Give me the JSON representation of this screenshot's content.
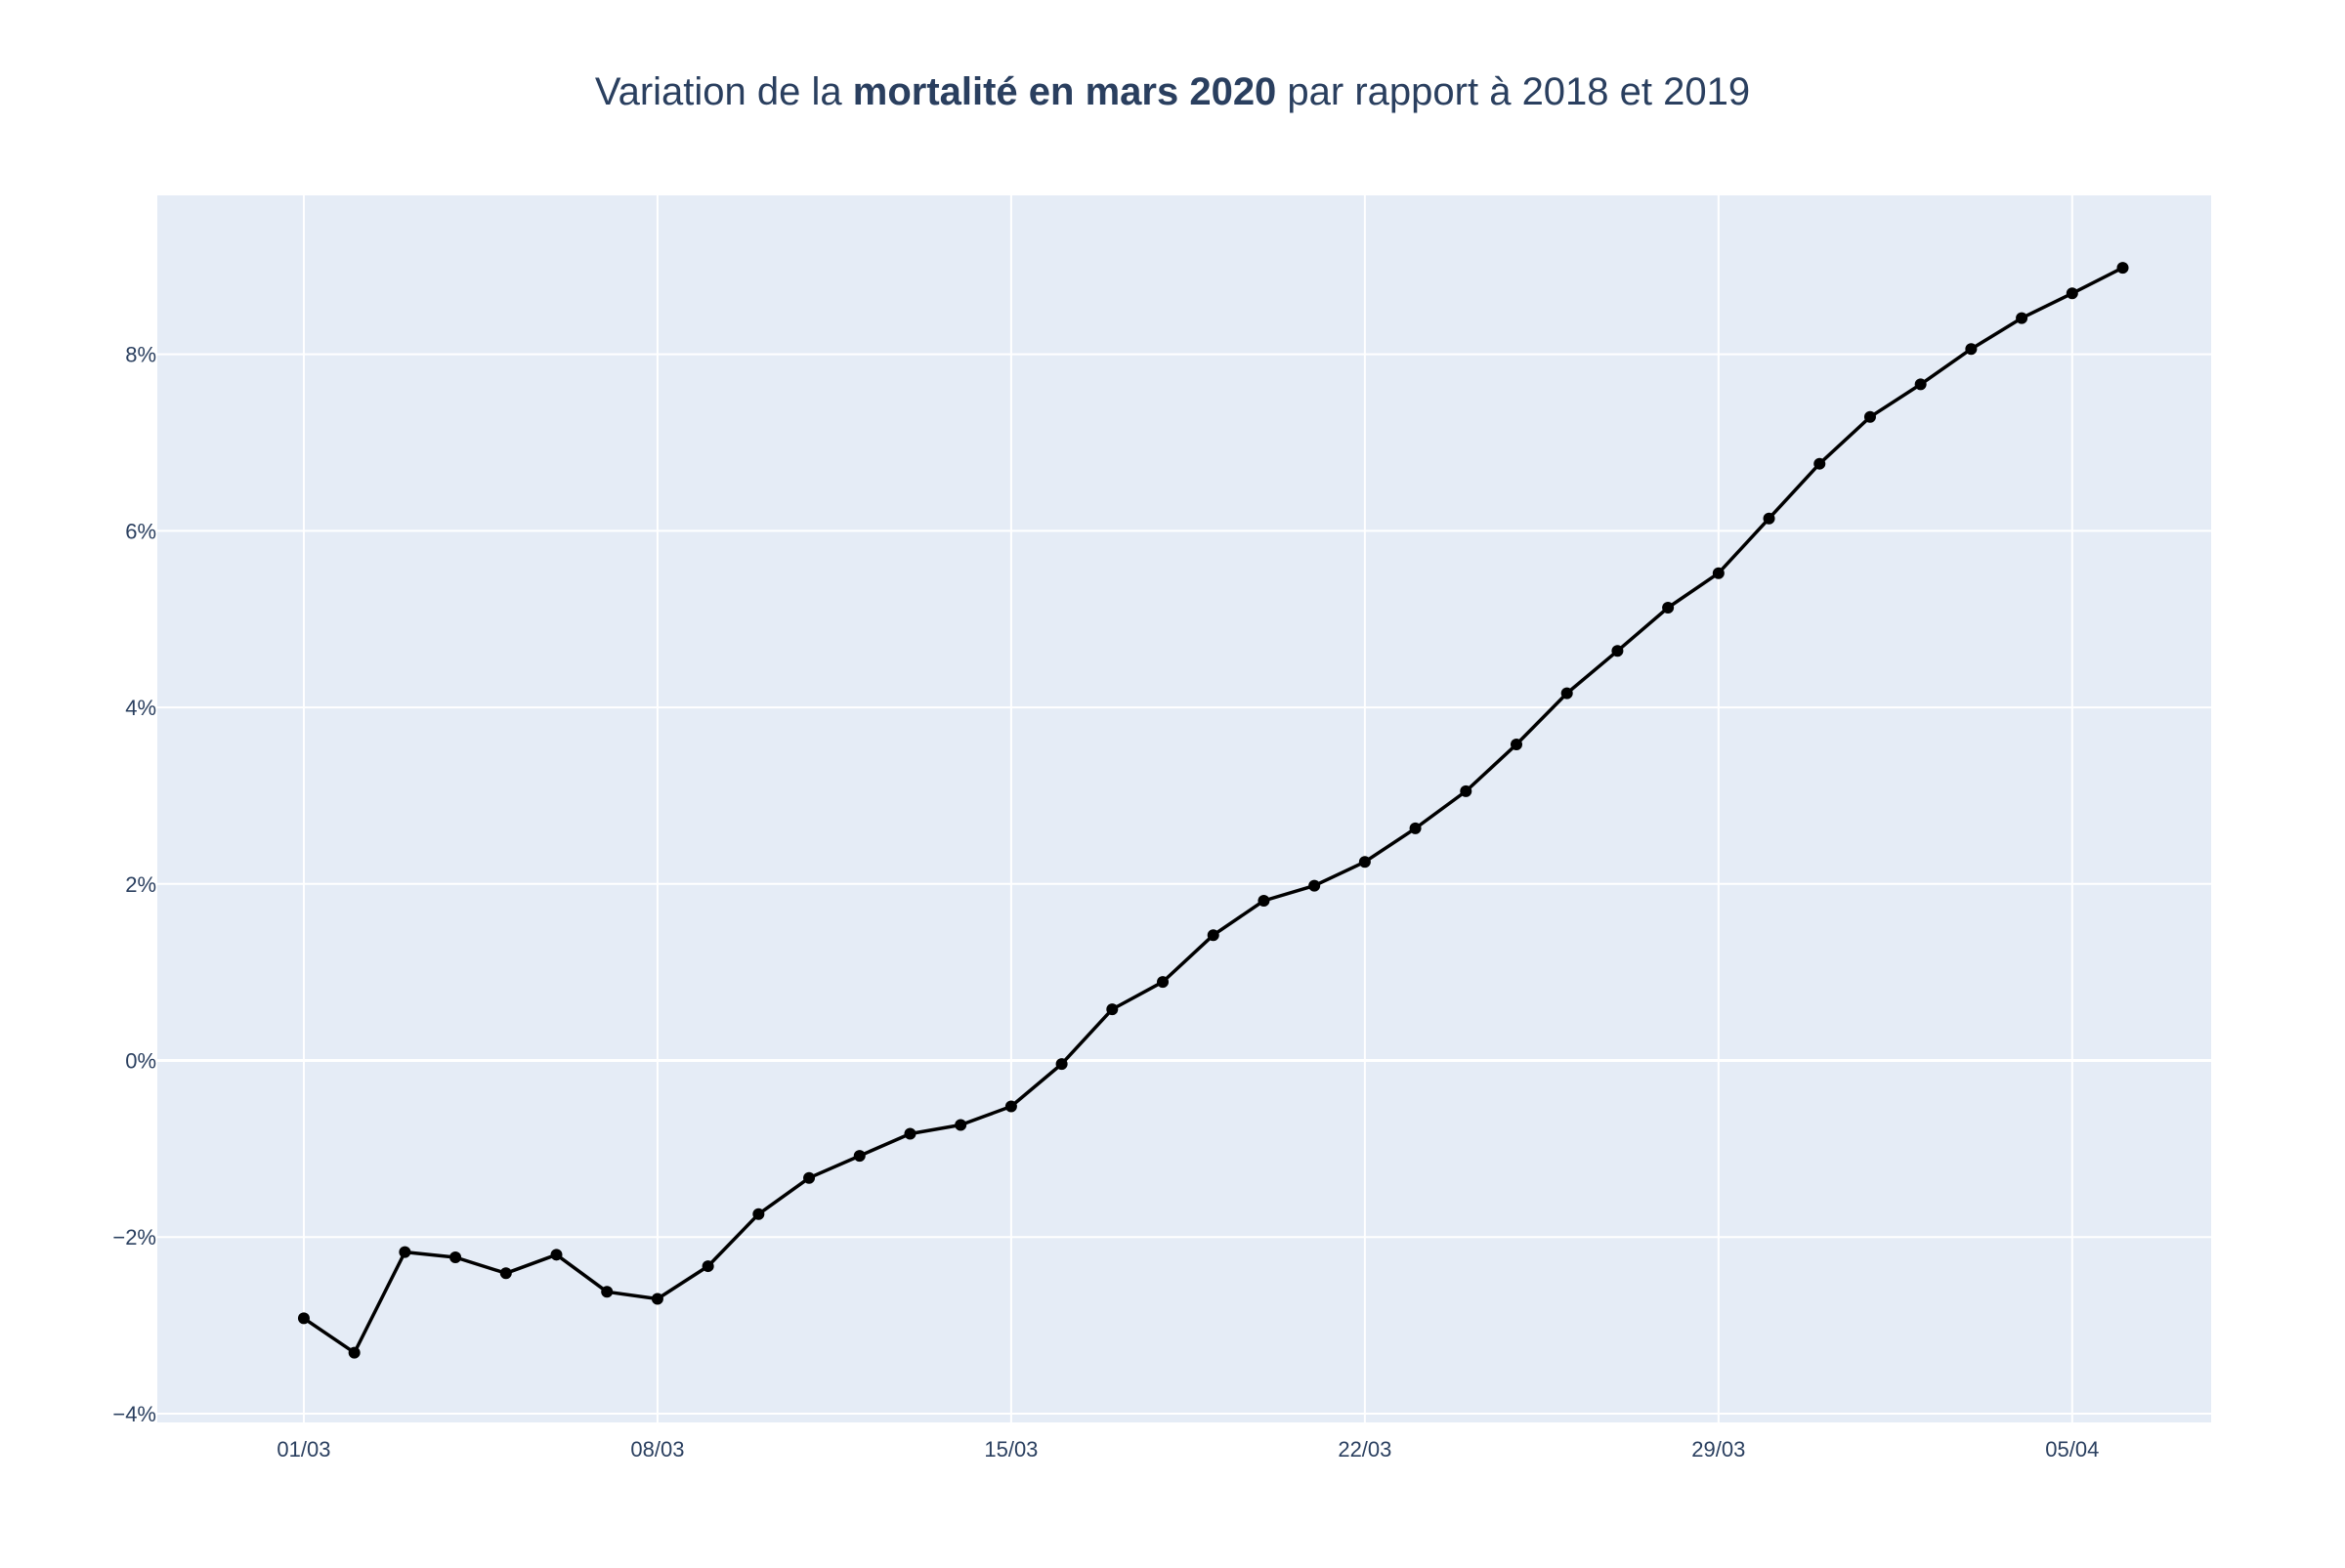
{
  "chart_data": {
    "type": "line",
    "title": {
      "prefix": "Variation de la ",
      "bold": "mortalité en mars 2020",
      "suffix": " par rapport à 2018 et 2019"
    },
    "xlabel": "",
    "ylabel": "",
    "x_start_date": "2020-03-01",
    "x_tick_labels": [
      "01/03",
      "08/03",
      "15/03",
      "22/03",
      "29/03",
      "05/04"
    ],
    "x_tick_dates": [
      "2020-03-01",
      "2020-03-08",
      "2020-03-15",
      "2020-03-22",
      "2020-03-29",
      "2020-04-05"
    ],
    "y_tick_values": [
      -4,
      -2,
      0,
      2,
      4,
      6,
      8
    ],
    "y_tick_labels": [
      "−4%",
      "−2%",
      "0%",
      "2%",
      "4%",
      "6%",
      "8%"
    ],
    "xlim": [
      "2020-02-28",
      "2020-04-08"
    ],
    "ylim": [
      -4.1,
      9.8
    ],
    "grid": true,
    "colors": {
      "plot_bg": "#e5ecf6",
      "grid": "#ffffff",
      "line": "#000000",
      "text": "#2a3f5f"
    },
    "series": [
      {
        "x": [
          "2020-03-01",
          "2020-03-02",
          "2020-03-03",
          "2020-03-04",
          "2020-03-05",
          "2020-03-06",
          "2020-03-07",
          "2020-03-08",
          "2020-03-09",
          "2020-03-10",
          "2020-03-11",
          "2020-03-12",
          "2020-03-13",
          "2020-03-14",
          "2020-03-15",
          "2020-03-16",
          "2020-03-17",
          "2020-03-18",
          "2020-03-19",
          "2020-03-20",
          "2020-03-21",
          "2020-03-22",
          "2020-03-23",
          "2020-03-24",
          "2020-03-25",
          "2020-03-26",
          "2020-03-27",
          "2020-03-28",
          "2020-03-29",
          "2020-03-30",
          "2020-03-31",
          "2020-04-01",
          "2020-04-02",
          "2020-04-03",
          "2020-04-04",
          "2020-04-05",
          "2020-04-06"
        ],
        "values": [
          -2.92,
          -3.31,
          -2.17,
          -2.23,
          -2.41,
          -2.2,
          -2.62,
          -2.7,
          -2.33,
          -1.74,
          -1.33,
          -1.08,
          -0.83,
          -0.73,
          -0.52,
          -0.04,
          0.58,
          0.89,
          1.42,
          1.81,
          1.98,
          2.25,
          2.63,
          3.05,
          3.58,
          4.16,
          4.64,
          5.13,
          5.52,
          6.14,
          6.76,
          7.29,
          7.66,
          8.06,
          8.41,
          8.69,
          8.98
        ]
      }
    ]
  }
}
